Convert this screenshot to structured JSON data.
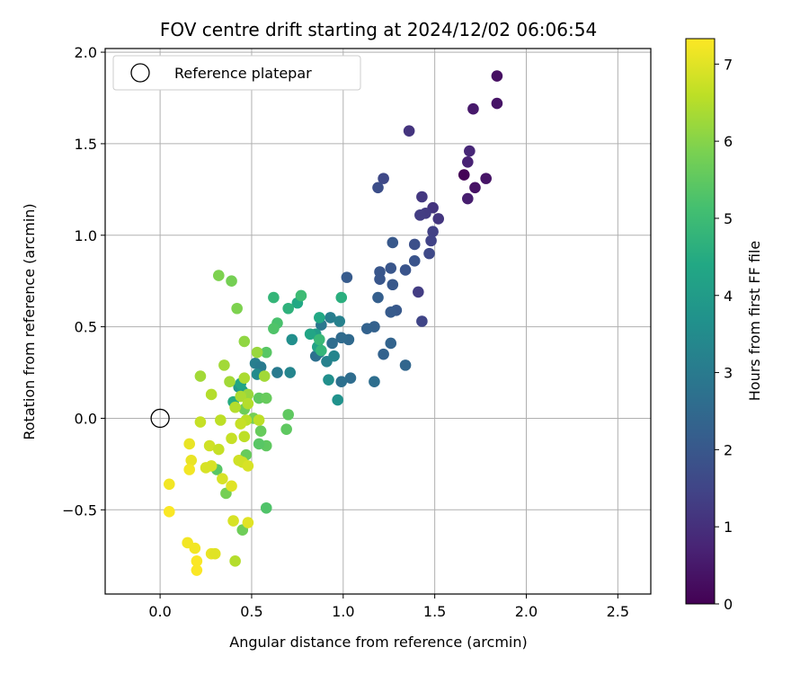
{
  "chart_data": {
    "type": "scatter",
    "title": "FOV centre drift starting at 2024/12/02 06:06:54",
    "xlabel": "Angular distance from reference (arcmin)",
    "ylabel": "Rotation from reference (arcmin)",
    "xlim": [
      -0.3,
      2.68
    ],
    "ylim": [
      -0.96,
      2.02
    ],
    "xticks": [
      0.0,
      0.5,
      1.0,
      1.5,
      2.0,
      2.5
    ],
    "xtick_labels": [
      "0.0",
      "0.5",
      "1.0",
      "1.5",
      "2.0",
      "2.5"
    ],
    "yticks": [
      -0.5,
      0.0,
      0.5,
      1.0,
      1.5,
      2.0
    ],
    "ytick_labels": [
      "−0.5",
      "0.0",
      "0.5",
      "1.0",
      "1.5",
      "2.0"
    ],
    "grid": true,
    "legend": {
      "placement": "upper-left",
      "label": "Reference platepar"
    },
    "reference_point": {
      "x": 0.0,
      "y": 0.0
    },
    "colorbar": {
      "label": "Hours from first FF file",
      "colormap": "viridis",
      "range": [
        0,
        7.33
      ],
      "ticks": [
        0,
        1,
        2,
        3,
        4,
        5,
        6,
        7
      ],
      "tick_labels": [
        "0",
        "1",
        "2",
        "3",
        "4",
        "5",
        "6",
        "7"
      ]
    },
    "points": [
      {
        "x": 1.66,
        "y": 1.33,
        "c": 0.05
      },
      {
        "x": 1.84,
        "y": 1.87,
        "c": 0.3
      },
      {
        "x": 1.84,
        "y": 1.72,
        "c": 0.4
      },
      {
        "x": 1.71,
        "y": 1.69,
        "c": 0.5
      },
      {
        "x": 1.78,
        "y": 1.31,
        "c": 0.4
      },
      {
        "x": 1.72,
        "y": 1.26,
        "c": 0.35
      },
      {
        "x": 1.68,
        "y": 1.2,
        "c": 0.6
      },
      {
        "x": 1.69,
        "y": 1.46,
        "c": 0.8
      },
      {
        "x": 1.68,
        "y": 1.4,
        "c": 0.7
      },
      {
        "x": 1.36,
        "y": 1.57,
        "c": 1.1
      },
      {
        "x": 1.49,
        "y": 1.15,
        "c": 1.1
      },
      {
        "x": 1.43,
        "y": 1.21,
        "c": 1.2
      },
      {
        "x": 1.52,
        "y": 1.09,
        "c": 1.15
      },
      {
        "x": 1.45,
        "y": 1.12,
        "c": 1.25
      },
      {
        "x": 1.42,
        "y": 1.11,
        "c": 1.3
      },
      {
        "x": 1.49,
        "y": 1.02,
        "c": 1.4
      },
      {
        "x": 1.48,
        "y": 0.97,
        "c": 1.45
      },
      {
        "x": 1.47,
        "y": 0.9,
        "c": 1.6
      },
      {
        "x": 1.22,
        "y": 1.31,
        "c": 1.6
      },
      {
        "x": 1.19,
        "y": 1.26,
        "c": 1.75
      },
      {
        "x": 1.39,
        "y": 0.95,
        "c": 1.8
      },
      {
        "x": 1.39,
        "y": 0.86,
        "c": 1.9
      },
      {
        "x": 1.41,
        "y": 0.69,
        "c": 1.3
      },
      {
        "x": 1.43,
        "y": 0.53,
        "c": 1.5
      },
      {
        "x": 1.34,
        "y": 0.81,
        "c": 1.9
      },
      {
        "x": 1.26,
        "y": 0.82,
        "c": 1.95
      },
      {
        "x": 1.27,
        "y": 0.96,
        "c": 2.0
      },
      {
        "x": 1.2,
        "y": 0.8,
        "c": 1.95
      },
      {
        "x": 1.2,
        "y": 0.76,
        "c": 1.95
      },
      {
        "x": 1.27,
        "y": 0.73,
        "c": 2.0
      },
      {
        "x": 1.29,
        "y": 0.59,
        "c": 2.0
      },
      {
        "x": 1.26,
        "y": 0.58,
        "c": 2.1
      },
      {
        "x": 1.02,
        "y": 0.77,
        "c": 2.1
      },
      {
        "x": 1.19,
        "y": 0.66,
        "c": 2.2
      },
      {
        "x": 1.17,
        "y": 0.5,
        "c": 2.25
      },
      {
        "x": 1.13,
        "y": 0.49,
        "c": 2.3
      },
      {
        "x": 1.26,
        "y": 0.41,
        "c": 2.35
      },
      {
        "x": 1.22,
        "y": 0.35,
        "c": 2.3
      },
      {
        "x": 1.34,
        "y": 0.29,
        "c": 2.4
      },
      {
        "x": 0.94,
        "y": 0.41,
        "c": 2.6
      },
      {
        "x": 1.03,
        "y": 0.43,
        "c": 2.5
      },
      {
        "x": 0.99,
        "y": 0.44,
        "c": 2.55
      },
      {
        "x": 0.85,
        "y": 0.34,
        "c": 2.7
      },
      {
        "x": 0.87,
        "y": 0.36,
        "c": 2.8
      },
      {
        "x": 1.04,
        "y": 0.22,
        "c": 2.6
      },
      {
        "x": 0.99,
        "y": 0.2,
        "c": 2.7
      },
      {
        "x": 1.17,
        "y": 0.2,
        "c": 2.65
      },
      {
        "x": 0.88,
        "y": 0.51,
        "c": 2.9
      },
      {
        "x": 0.93,
        "y": 0.55,
        "c": 3.1
      },
      {
        "x": 0.98,
        "y": 0.53,
        "c": 3.2
      },
      {
        "x": 0.91,
        "y": 0.31,
        "c": 3.2
      },
      {
        "x": 0.95,
        "y": 0.34,
        "c": 3.3
      },
      {
        "x": 0.72,
        "y": 0.43,
        "c": 3.6
      },
      {
        "x": 0.64,
        "y": 0.25,
        "c": 3.0
      },
      {
        "x": 0.71,
        "y": 0.25,
        "c": 3.3
      },
      {
        "x": 0.52,
        "y": 0.3,
        "c": 3.1
      },
      {
        "x": 0.55,
        "y": 0.28,
        "c": 3.0
      },
      {
        "x": 0.53,
        "y": 0.24,
        "c": 3.5
      },
      {
        "x": 0.92,
        "y": 0.21,
        "c": 3.6
      },
      {
        "x": 0.97,
        "y": 0.1,
        "c": 3.7
      },
      {
        "x": 0.85,
        "y": 0.46,
        "c": 4.0
      },
      {
        "x": 0.86,
        "y": 0.39,
        "c": 4.2
      },
      {
        "x": 0.87,
        "y": 0.55,
        "c": 4.4
      },
      {
        "x": 0.82,
        "y": 0.46,
        "c": 4.3
      },
      {
        "x": 0.75,
        "y": 0.63,
        "c": 4.4
      },
      {
        "x": 0.7,
        "y": 0.6,
        "c": 4.7
      },
      {
        "x": 0.99,
        "y": 0.66,
        "c": 4.6
      },
      {
        "x": 0.88,
        "y": 0.37,
        "c": 4.8
      },
      {
        "x": 0.87,
        "y": 0.43,
        "c": 4.9
      },
      {
        "x": 0.62,
        "y": 0.66,
        "c": 4.8
      },
      {
        "x": 0.77,
        "y": 0.67,
        "c": 5.0
      },
      {
        "x": 0.64,
        "y": 0.52,
        "c": 5.2
      },
      {
        "x": 0.62,
        "y": 0.49,
        "c": 5.3
      },
      {
        "x": 0.58,
        "y": 0.36,
        "c": 5.4
      },
      {
        "x": 0.43,
        "y": 0.17,
        "c": 3.9
      },
      {
        "x": 0.45,
        "y": 0.15,
        "c": 4.1
      },
      {
        "x": 0.4,
        "y": 0.09,
        "c": 4.5
      },
      {
        "x": 0.44,
        "y": 0.19,
        "c": 4.3
      },
      {
        "x": 0.54,
        "y": 0.11,
        "c": 5.5
      },
      {
        "x": 0.58,
        "y": 0.11,
        "c": 5.6
      },
      {
        "x": 0.46,
        "y": 0.05,
        "c": 5.7
      },
      {
        "x": 0.51,
        "y": 0.0,
        "c": 5.8
      },
      {
        "x": 0.7,
        "y": 0.02,
        "c": 5.5
      },
      {
        "x": 0.69,
        "y": -0.06,
        "c": 5.5
      },
      {
        "x": 0.55,
        "y": -0.07,
        "c": 5.6
      },
      {
        "x": 0.58,
        "y": -0.15,
        "c": 5.5
      },
      {
        "x": 0.54,
        "y": -0.14,
        "c": 5.4
      },
      {
        "x": 0.58,
        "y": -0.49,
        "c": 5.3
      },
      {
        "x": 0.45,
        "y": -0.61,
        "c": 5.7
      },
      {
        "x": 0.47,
        "y": -0.2,
        "c": 5.6
      },
      {
        "x": 0.36,
        "y": -0.41,
        "c": 5.8
      },
      {
        "x": 0.31,
        "y": -0.28,
        "c": 5.4
      },
      {
        "x": 0.32,
        "y": 0.78,
        "c": 5.9
      },
      {
        "x": 0.39,
        "y": 0.75,
        "c": 5.8
      },
      {
        "x": 0.42,
        "y": 0.6,
        "c": 5.9
      },
      {
        "x": 0.46,
        "y": 0.42,
        "c": 6.1
      },
      {
        "x": 0.53,
        "y": 0.36,
        "c": 6.2
      },
      {
        "x": 0.57,
        "y": 0.23,
        "c": 6.3
      },
      {
        "x": 0.35,
        "y": 0.29,
        "c": 6.3
      },
      {
        "x": 0.38,
        "y": 0.2,
        "c": 6.3
      },
      {
        "x": 0.22,
        "y": 0.23,
        "c": 6.3
      },
      {
        "x": 0.46,
        "y": 0.22,
        "c": 6.4
      },
      {
        "x": 0.48,
        "y": 0.13,
        "c": 6.2
      },
      {
        "x": 0.44,
        "y": 0.12,
        "c": 6.4
      },
      {
        "x": 0.28,
        "y": 0.13,
        "c": 6.5
      },
      {
        "x": 0.48,
        "y": 0.08,
        "c": 6.5
      },
      {
        "x": 0.41,
        "y": 0.06,
        "c": 6.5
      },
      {
        "x": 0.47,
        "y": -0.01,
        "c": 6.6
      },
      {
        "x": 0.54,
        "y": -0.01,
        "c": 6.6
      },
      {
        "x": 0.33,
        "y": -0.01,
        "c": 6.6
      },
      {
        "x": 0.22,
        "y": -0.02,
        "c": 6.7
      },
      {
        "x": 0.44,
        "y": -0.03,
        "c": 6.7
      },
      {
        "x": 0.39,
        "y": -0.11,
        "c": 6.7
      },
      {
        "x": 0.46,
        "y": -0.1,
        "c": 6.6
      },
      {
        "x": 0.27,
        "y": -0.15,
        "c": 6.8
      },
      {
        "x": 0.32,
        "y": -0.17,
        "c": 6.7
      },
      {
        "x": 0.43,
        "y": -0.23,
        "c": 6.8
      },
      {
        "x": 0.45,
        "y": -0.24,
        "c": 6.8
      },
      {
        "x": 0.48,
        "y": -0.26,
        "c": 6.9
      },
      {
        "x": 0.25,
        "y": -0.27,
        "c": 6.9
      },
      {
        "x": 0.28,
        "y": -0.26,
        "c": 6.9
      },
      {
        "x": 0.34,
        "y": -0.33,
        "c": 6.9
      },
      {
        "x": 0.39,
        "y": -0.37,
        "c": 7.0
      },
      {
        "x": 0.4,
        "y": -0.56,
        "c": 6.9
      },
      {
        "x": 0.48,
        "y": -0.57,
        "c": 7.0
      },
      {
        "x": 0.16,
        "y": -0.14,
        "c": 7.1
      },
      {
        "x": 0.17,
        "y": -0.23,
        "c": 7.1
      },
      {
        "x": 0.16,
        "y": -0.28,
        "c": 7.2
      },
      {
        "x": 0.05,
        "y": -0.36,
        "c": 7.2
      },
      {
        "x": 0.05,
        "y": -0.51,
        "c": 7.3
      },
      {
        "x": 0.15,
        "y": -0.68,
        "c": 7.2
      },
      {
        "x": 0.19,
        "y": -0.71,
        "c": 7.2
      },
      {
        "x": 0.2,
        "y": -0.78,
        "c": 7.3
      },
      {
        "x": 0.2,
        "y": -0.83,
        "c": 7.3
      },
      {
        "x": 0.28,
        "y": -0.74,
        "c": 7.1
      },
      {
        "x": 0.3,
        "y": -0.74,
        "c": 7.0
      },
      {
        "x": 0.41,
        "y": -0.78,
        "c": 6.5
      }
    ]
  }
}
